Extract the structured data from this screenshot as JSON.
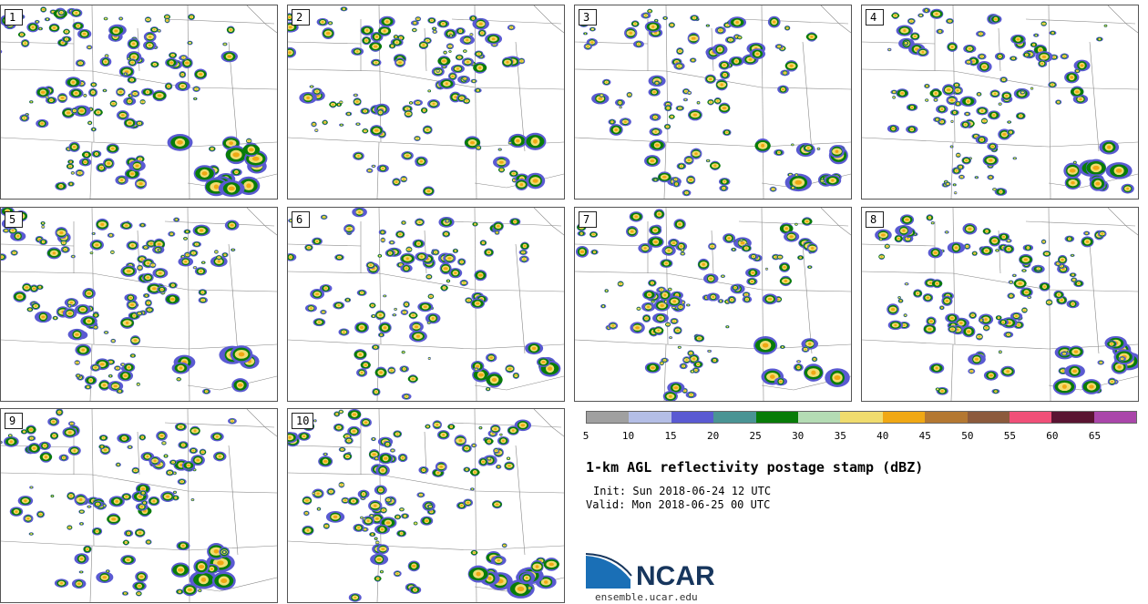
{
  "panels": [
    "1",
    "2",
    "3",
    "4",
    "5",
    "6",
    "7",
    "8",
    "9",
    "10"
  ],
  "colorbar": {
    "colors": [
      "#a0a0a0",
      "#b4bee6",
      "#5a5ad2",
      "#4a9494",
      "#087c08",
      "#b4dcb4",
      "#f0dc6e",
      "#f0a814",
      "#b47832",
      "#8c5a3c",
      "#f05078",
      "#5a1432",
      "#aa46aa"
    ],
    "ticks": [
      "5",
      "10",
      "15",
      "20",
      "25",
      "30",
      "35",
      "40",
      "45",
      "50",
      "55",
      "60",
      "65"
    ]
  },
  "title": "1-km AGL reflectivity postage stamp (dBZ)",
  "init": "Init: Sun 2018-06-24 12 UTC",
  "valid": "Valid: Mon 2018-06-25 00 UTC",
  "logo": {
    "name": "NCAR",
    "colors": [
      "#1a6fb6",
      "#17365d"
    ]
  },
  "site": "ensemble.ucar.edu"
}
